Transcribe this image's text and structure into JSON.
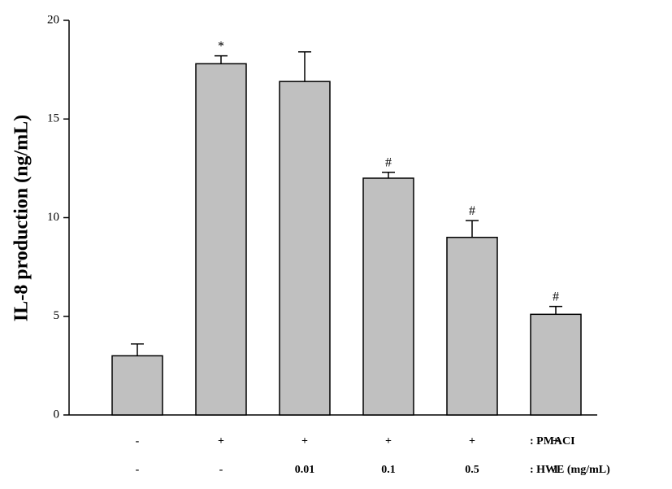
{
  "chart_data": {
    "type": "bar",
    "y_label": "IL-8 production (ng/mL)",
    "category_rows": [
      {
        "name": ": PMACI",
        "labels": [
          "-",
          "+",
          "+",
          "+",
          "+",
          "+"
        ]
      },
      {
        "name": ": HWE (mg/mL)",
        "labels": [
          "-",
          "-",
          "0.01",
          "0.1",
          "0.5",
          "1"
        ]
      }
    ],
    "values": [
      3.0,
      17.8,
      16.9,
      12.0,
      9.0,
      5.1
    ],
    "errors": [
      0.6,
      0.4,
      1.5,
      0.3,
      0.85,
      0.4
    ],
    "annotations": [
      null,
      "*",
      null,
      "#",
      "#",
      "#"
    ],
    "color": "#c0c0c0",
    "ylim": [
      0,
      20
    ],
    "yticks": [
      0,
      5,
      10,
      15,
      20
    ]
  }
}
